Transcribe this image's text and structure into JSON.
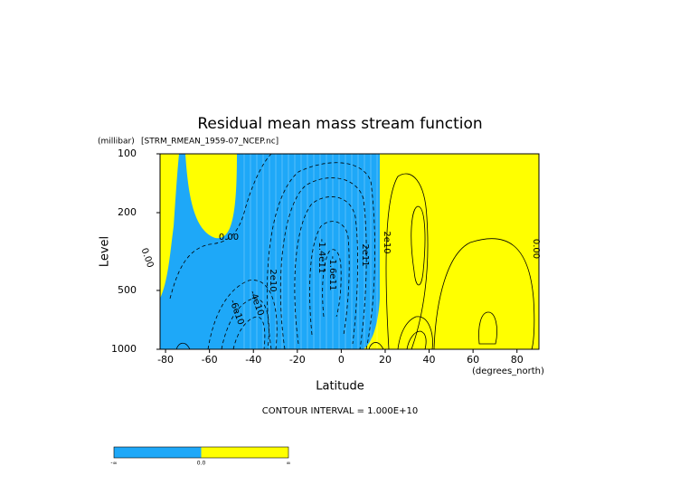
{
  "chart_data": {
    "type": "contour",
    "title": "Residual mean mass stream function",
    "subtitle": "[STRM_RMEAN_1959-07_NCEP.nc]",
    "y_unit": "(millibar)",
    "x_unit": "(degrees_north)",
    "xlabel": "Latitude",
    "ylabel": "Level",
    "xlim": [
      -82.5,
      90
    ],
    "xticks": [
      -80,
      -60,
      -40,
      -20,
      0,
      20,
      40,
      60,
      80
    ],
    "ylim": [
      1000,
      100
    ],
    "yticks": [
      100,
      200,
      500,
      1000
    ],
    "log_y": true,
    "negative_color": "#1ea8f8",
    "positive_color": "#ffff00",
    "contour_labels": [
      "0.00",
      "0.00",
      "2e10",
      "-6e10",
      "-4e10",
      "-1.4e11",
      "-1.6e11",
      "2e11",
      "2e10",
      "0.00"
    ],
    "contour_interval_label": "CONTOUR INTERVAL = 1.000E+10",
    "colorbar_labels": [
      "-∞",
      "0.0",
      "∞"
    ]
  }
}
